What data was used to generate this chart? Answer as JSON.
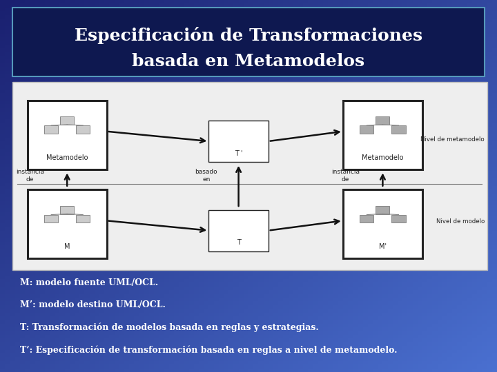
{
  "title_line1": "Especificación de Transformaciones",
  "title_line2": "basada en Metamodelos",
  "bullet1": "M: modelo fuente UML/OCL.",
  "bullet2": "M’: modelo destino UML/OCL.",
  "bullet3": "T: Transformación de modelos basada en reglas y estrategias.",
  "bullet4": "T’: Especificación de transformación basada en reglas a nivel de metamodelo.",
  "label_metamodelo_left": "Metamodelo",
  "label_metamodelo_right": "Metamodelo",
  "label_M": "M",
  "label_Mprime": "M'",
  "label_T": "T",
  "label_Tprime": "T '",
  "label_instancia_de_left": "instancia\nde",
  "label_basado_en": "basado\nen",
  "label_instancia_de_right": "instancia\nde",
  "label_nivel_metamodelo": "Nivel de metamodelo",
  "label_nivel_modelo": "Nivel de modelo",
  "bg_dark": "#1a2070",
  "bg_mid": "#3060c0",
  "bg_light": "#4a80d0",
  "header_bg": "#0e1850",
  "header_border": "#5599bb",
  "diagram_bg": "#eeeeee",
  "diagram_border": "#bbbbbb",
  "box_edge_thick": "#222222",
  "box_edge_thin": "#555555",
  "icon_fill_light": "#cccccc",
  "icon_fill_dark": "#aaaaaa",
  "icon_edge": "#888888",
  "arrow_color": "#111111",
  "sep_line_color": "#777777",
  "label_color": "#222222",
  "text_color": "#ffffff",
  "title_fontsize": 18,
  "bullet_fontsize": 9
}
